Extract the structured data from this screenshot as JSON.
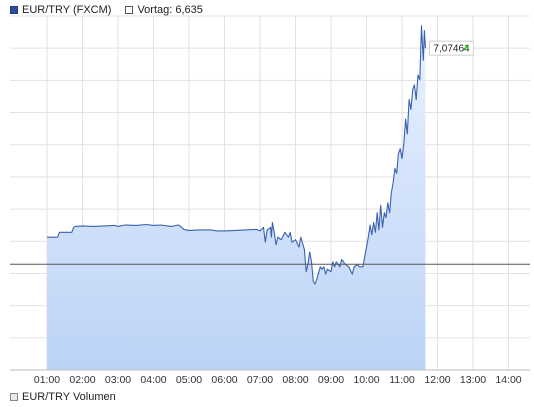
{
  "legend": {
    "series_label": "EUR/TRY (FXCM)",
    "prev_label": "Vortag: 6,635",
    "volume_label": "EUR/TRY Volumen"
  },
  "colors": {
    "line": "#3a62b0",
    "fill_top": "#e9f1ff",
    "fill_bottom": "#bcd3f6",
    "grid": "#e2e2e2",
    "prev_line": "#555555",
    "up_arrow": "#2bb02b"
  },
  "chart_data": {
    "type": "area",
    "x_ticks": [
      "01:00",
      "02:00",
      "03:00",
      "04:00",
      "05:00",
      "06:00",
      "07:00",
      "08:00",
      "09:00",
      "10:00",
      "11:00",
      "12:00",
      "13:00",
      "14:00"
    ],
    "ylim": [
      6.42,
      7.14
    ],
    "prev_close": 6.635,
    "last_value": 7.07464,
    "last_label": "7,07464",
    "series": [
      {
        "values": [
          [
            1.0,
            6.69
          ],
          [
            1.3,
            6.69
          ],
          [
            1.35,
            6.7
          ],
          [
            1.7,
            6.7
          ],
          [
            1.75,
            6.71
          ],
          [
            1.8,
            6.712
          ],
          [
            2.0,
            6.713
          ],
          [
            2.3,
            6.712
          ],
          [
            2.6,
            6.713
          ],
          [
            2.9,
            6.714
          ],
          [
            3.0,
            6.712
          ],
          [
            3.2,
            6.715
          ],
          [
            3.5,
            6.714
          ],
          [
            3.8,
            6.716
          ],
          [
            4.0,
            6.714
          ],
          [
            4.2,
            6.715
          ],
          [
            4.5,
            6.712
          ],
          [
            4.7,
            6.715
          ],
          [
            4.8,
            6.71
          ],
          [
            4.85,
            6.706
          ],
          [
            5.0,
            6.704
          ],
          [
            5.3,
            6.705
          ],
          [
            5.6,
            6.705
          ],
          [
            5.8,
            6.703
          ],
          [
            6.0,
            6.703
          ],
          [
            6.3,
            6.704
          ],
          [
            6.6,
            6.705
          ],
          [
            6.9,
            6.706
          ],
          [
            7.0,
            6.703
          ],
          [
            7.1,
            6.71
          ],
          [
            7.15,
            6.68
          ],
          [
            7.2,
            6.705
          ],
          [
            7.3,
            6.71
          ],
          [
            7.32,
            6.69
          ],
          [
            7.35,
            6.72
          ],
          [
            7.4,
            6.7
          ],
          [
            7.45,
            6.675
          ],
          [
            7.5,
            6.69
          ],
          [
            7.6,
            6.685
          ],
          [
            7.7,
            6.7
          ],
          [
            7.8,
            6.69
          ],
          [
            7.85,
            6.7
          ],
          [
            7.9,
            6.68
          ],
          [
            8.0,
            6.685
          ],
          [
            8.1,
            6.67
          ],
          [
            8.15,
            6.69
          ],
          [
            8.25,
            6.665
          ],
          [
            8.3,
            6.62
          ],
          [
            8.35,
            6.635
          ],
          [
            8.4,
            6.66
          ],
          [
            8.45,
            6.64
          ],
          [
            8.5,
            6.6
          ],
          [
            8.55,
            6.595
          ],
          [
            8.6,
            6.605
          ],
          [
            8.7,
            6.63
          ],
          [
            8.75,
            6.625
          ],
          [
            8.8,
            6.63
          ],
          [
            8.85,
            6.615
          ],
          [
            8.9,
            6.625
          ],
          [
            9.0,
            6.62
          ],
          [
            9.05,
            6.64
          ],
          [
            9.1,
            6.63
          ],
          [
            9.15,
            6.64
          ],
          [
            9.25,
            6.63
          ],
          [
            9.3,
            6.645
          ],
          [
            9.4,
            6.635
          ],
          [
            9.5,
            6.63
          ],
          [
            9.6,
            6.615
          ],
          [
            9.65,
            6.63
          ],
          [
            9.75,
            6.635
          ],
          [
            9.8,
            6.63
          ],
          [
            9.9,
            6.63
          ],
          [
            10.0,
            6.67
          ],
          [
            10.05,
            6.69
          ],
          [
            10.1,
            6.715
          ],
          [
            10.15,
            6.695
          ],
          [
            10.2,
            6.72
          ],
          [
            10.25,
            6.7
          ],
          [
            10.3,
            6.74
          ],
          [
            10.35,
            6.705
          ],
          [
            10.4,
            6.755
          ],
          [
            10.45,
            6.71
          ],
          [
            10.5,
            6.74
          ],
          [
            10.55,
            6.73
          ],
          [
            10.6,
            6.76
          ],
          [
            10.65,
            6.74
          ],
          [
            10.7,
            6.78
          ],
          [
            10.75,
            6.8
          ],
          [
            10.8,
            6.83
          ],
          [
            10.85,
            6.82
          ],
          [
            10.9,
            6.86
          ],
          [
            10.95,
            6.87
          ],
          [
            11.0,
            6.85
          ],
          [
            11.05,
            6.88
          ],
          [
            11.1,
            6.93
          ],
          [
            11.15,
            6.9
          ],
          [
            11.2,
            6.97
          ],
          [
            11.25,
            6.95
          ],
          [
            11.3,
            6.99
          ],
          [
            11.35,
            7.0
          ],
          [
            11.4,
            6.97
          ],
          [
            11.45,
            7.02
          ],
          [
            11.5,
            7.01
          ],
          [
            11.55,
            7.12
          ],
          [
            11.6,
            7.05
          ],
          [
            11.63,
            7.11
          ],
          [
            11.66,
            7.07464
          ]
        ]
      }
    ]
  }
}
